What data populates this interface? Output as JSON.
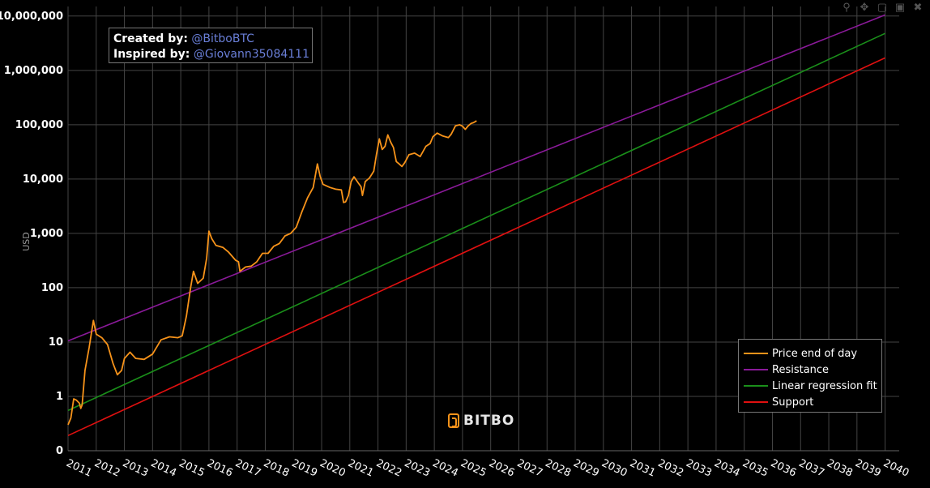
{
  "credits": {
    "created_label": "Created by:",
    "created_handle": "@BitboBTC",
    "inspired_label": "Inspired by:",
    "inspired_handle": "@Giovann35084111"
  },
  "brand": {
    "name": "BITBO"
  },
  "modebar": [
    "zoom-icon",
    "pan-icon",
    "zoom-box-icon",
    "autoscale-icon",
    "reset-icon"
  ],
  "chart_data": {
    "type": "line",
    "title": "",
    "xlabel": "",
    "ylabel": "USD",
    "y_scale": "log",
    "ylim": [
      0.1,
      15000000
    ],
    "xlim": [
      2011.0,
      2040.5
    ],
    "grid": true,
    "legend_position": "bottom-right",
    "y_ticks": [
      {
        "value": 0.1,
        "label": "0"
      },
      {
        "value": 1,
        "label": "1"
      },
      {
        "value": 10,
        "label": "10"
      },
      {
        "value": 100,
        "label": "100"
      },
      {
        "value": 1000,
        "label": "1,000"
      },
      {
        "value": 10000,
        "label": "10,000"
      },
      {
        "value": 100000,
        "label": "100,000"
      },
      {
        "value": 1000000,
        "label": "1,000,000"
      },
      {
        "value": 10000000,
        "label": "10,000,000"
      }
    ],
    "x_ticks": [
      "2011",
      "2012",
      "2013",
      "2014",
      "2015",
      "2016",
      "2017",
      "2018",
      "2019",
      "2020",
      "2021",
      "2022",
      "2023",
      "2024",
      "2025",
      "2026",
      "2027",
      "2028",
      "2029",
      "2030",
      "2031",
      "2032",
      "2033",
      "2034",
      "2035",
      "2036",
      "2037",
      "2038",
      "2039",
      "2040"
    ],
    "x_tick_values": [
      2011.0,
      2012.0,
      2013.0,
      2014.0,
      2015.0,
      2016.0,
      2017.0,
      2018.0,
      2019.0,
      2020.0,
      2021.0,
      2022.0,
      2023.0,
      2024.0,
      2025.0,
      2026.0,
      2027.0,
      2028.0,
      2029.0,
      2030.0,
      2031.0,
      2032.0,
      2033.0,
      2034.0,
      2035.0,
      2036.0,
      2037.0,
      2038.0,
      2039.0,
      2040.0
    ],
    "series": [
      {
        "name": "Price end of day",
        "color": "#f7931a",
        "points": [
          [
            2011.0,
            0.3
          ],
          [
            2011.1,
            0.4
          ],
          [
            2011.2,
            0.9
          ],
          [
            2011.3,
            0.85
          ],
          [
            2011.4,
            0.75
          ],
          [
            2011.45,
            0.6
          ],
          [
            2011.5,
            0.7
          ],
          [
            2011.6,
            3
          ],
          [
            2011.75,
            8
          ],
          [
            2011.9,
            25
          ],
          [
            2012.0,
            14
          ],
          [
            2012.2,
            12
          ],
          [
            2012.4,
            9
          ],
          [
            2012.6,
            4
          ],
          [
            2012.75,
            2.5
          ],
          [
            2012.9,
            3
          ],
          [
            2013.0,
            5
          ],
          [
            2013.2,
            6.5
          ],
          [
            2013.4,
            5
          ],
          [
            2013.7,
            4.8
          ],
          [
            2014.0,
            6
          ],
          [
            2014.3,
            11
          ],
          [
            2014.6,
            12.5
          ],
          [
            2014.9,
            12
          ],
          [
            2015.05,
            13
          ],
          [
            2015.2,
            30
          ],
          [
            2015.35,
            100
          ],
          [
            2015.45,
            200
          ],
          [
            2015.6,
            120
          ],
          [
            2015.8,
            150
          ],
          [
            2015.92,
            350
          ],
          [
            2016.0,
            1100
          ],
          [
            2016.1,
            800
          ],
          [
            2016.25,
            600
          ],
          [
            2016.5,
            550
          ],
          [
            2016.7,
            450
          ],
          [
            2016.95,
            320
          ],
          [
            2017.05,
            300
          ],
          [
            2017.1,
            200
          ],
          [
            2017.3,
            240
          ],
          [
            2017.5,
            250
          ],
          [
            2017.7,
            300
          ],
          [
            2017.9,
            430
          ],
          [
            2018.1,
            430
          ],
          [
            2018.3,
            580
          ],
          [
            2018.5,
            650
          ],
          [
            2018.7,
            900
          ],
          [
            2018.9,
            1000
          ],
          [
            2019.1,
            1300
          ],
          [
            2019.3,
            2500
          ],
          [
            2019.5,
            4500
          ],
          [
            2019.7,
            7000
          ],
          [
            2019.85,
            19000
          ],
          [
            2019.95,
            11000
          ],
          [
            2020.05,
            8000
          ],
          [
            2020.3,
            7000
          ],
          [
            2020.5,
            6500
          ],
          [
            2020.7,
            6300
          ],
          [
            2020.78,
            3700
          ],
          [
            2020.85,
            3800
          ],
          [
            2020.95,
            5000
          ],
          [
            2021.05,
            9000
          ],
          [
            2021.15,
            11000
          ],
          [
            2021.3,
            8500
          ],
          [
            2021.4,
            7200
          ],
          [
            2021.45,
            5000
          ],
          [
            2021.55,
            9000
          ],
          [
            2021.7,
            10500
          ],
          [
            2021.85,
            14000
          ],
          [
            2021.95,
            29000
          ],
          [
            2022.05,
            55000
          ],
          [
            2022.15,
            35000
          ],
          [
            2022.25,
            40000
          ],
          [
            2022.35,
            65000
          ],
          [
            2022.45,
            48000
          ],
          [
            2022.55,
            38000
          ],
          [
            2022.65,
            21000
          ],
          [
            2022.75,
            19000
          ],
          [
            2022.85,
            17000
          ],
          [
            2022.95,
            20000
          ],
          [
            2023.1,
            28000
          ],
          [
            2023.3,
            30000
          ],
          [
            2023.5,
            26000
          ],
          [
            2023.7,
            40000
          ],
          [
            2023.85,
            45000
          ],
          [
            2023.95,
            60000
          ],
          [
            2024.1,
            70000
          ],
          [
            2024.3,
            62000
          ],
          [
            2024.5,
            58000
          ],
          [
            2024.6,
            67000
          ],
          [
            2024.75,
            95000
          ],
          [
            2024.9,
            100000
          ],
          [
            2025.0,
            94000
          ],
          [
            2025.1,
            82000
          ],
          [
            2025.2,
            95000
          ],
          [
            2025.3,
            105000
          ],
          [
            2025.4,
            110000
          ],
          [
            2025.5,
            118000
          ]
        ]
      },
      {
        "name": "Resistance",
        "color": "#8b1a9a",
        "points": [
          [
            2011.0,
            10.5
          ],
          [
            2040.0,
            10500000
          ]
        ]
      },
      {
        "name": "Linear regression fit",
        "color": "#1a8f1a",
        "points": [
          [
            2011.0,
            0.55
          ],
          [
            2040.0,
            4800000
          ]
        ]
      },
      {
        "name": "Support",
        "color": "#e01010",
        "points": [
          [
            2011.0,
            0.19
          ],
          [
            2040.0,
            1700000
          ]
        ]
      }
    ]
  }
}
